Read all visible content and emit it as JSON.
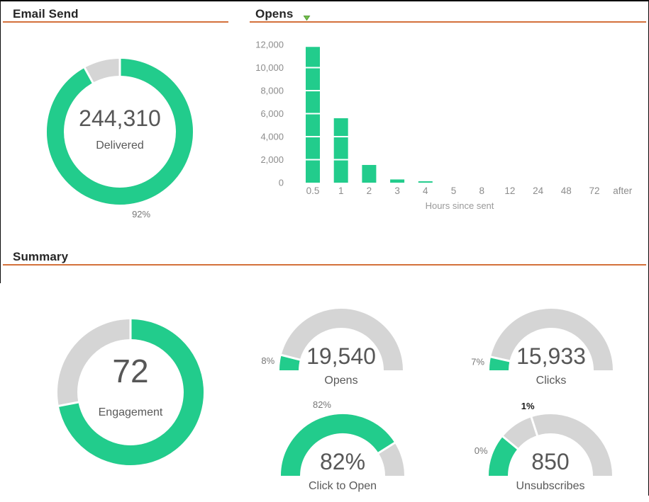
{
  "sections": {
    "email_send": {
      "title": "Email Send"
    },
    "opens": {
      "title": "Opens"
    },
    "summary": {
      "title": "Summary"
    }
  },
  "colors": {
    "green": "#22CC8C",
    "gray": "#D5D5D5",
    "accent_line": "#D4713B",
    "value_text": "#575757",
    "label_text": "#595959",
    "pct_text": "#777777",
    "tick_bold_text": "#1A1A1A",
    "axis_text": "#8C8C8C",
    "dropdown_green": "#72C14B",
    "dropdown_border": "#569B39"
  },
  "chart_data": [
    {
      "id": "delivered_donut",
      "type": "donut",
      "section": "Email Send",
      "value": "244,310",
      "label": "Delivered",
      "percent": 92,
      "percent_label": "92%",
      "fill_start": "12 o'clock, clockwise"
    },
    {
      "id": "opens_by_hour",
      "type": "bar",
      "section": "Opens",
      "categories": [
        "0.5",
        "1",
        "2",
        "3",
        "4",
        "5",
        "8",
        "12",
        "24",
        "48",
        "72",
        "after"
      ],
      "values": [
        11800,
        5600,
        1540,
        280,
        120,
        0,
        0,
        0,
        0,
        0,
        0,
        0
      ],
      "xlabel": "Hours since sent",
      "ylabel": "",
      "ylim": [
        0,
        12000
      ],
      "yticks": [
        0,
        2000,
        4000,
        6000,
        8000,
        10000,
        12000
      ],
      "ytick_labels": [
        "0",
        "2,000",
        "4,000",
        "6,000",
        "8,000",
        "10,000",
        "12,000"
      ],
      "grid": "white lines over bars",
      "legend": "none"
    },
    {
      "id": "engagement_donut",
      "type": "donut",
      "section": "Summary",
      "value": "72",
      "label": "Engagement",
      "percent": 72,
      "percent_label": ""
    },
    {
      "id": "opens_gauge",
      "type": "gauge",
      "section": "Summary",
      "value": "19,540",
      "label": "Opens",
      "percent": 8,
      "percent_label": "8%"
    },
    {
      "id": "clicks_gauge",
      "type": "gauge",
      "section": "Summary",
      "value": "15,933",
      "label": "Clicks",
      "percent": 7,
      "percent_label": "7%"
    },
    {
      "id": "click_to_open_gauge",
      "type": "gauge",
      "section": "Summary",
      "value": "82%",
      "label": "Click to Open",
      "percent": 82,
      "percent_label": "82%"
    },
    {
      "id": "unsubscribes_gauge",
      "type": "gauge",
      "section": "Summary",
      "value": "850",
      "label": "Unsubscribes",
      "percent": 22,
      "percent_label": "0%",
      "tick_label": "1%",
      "tick_percent": 40
    }
  ]
}
